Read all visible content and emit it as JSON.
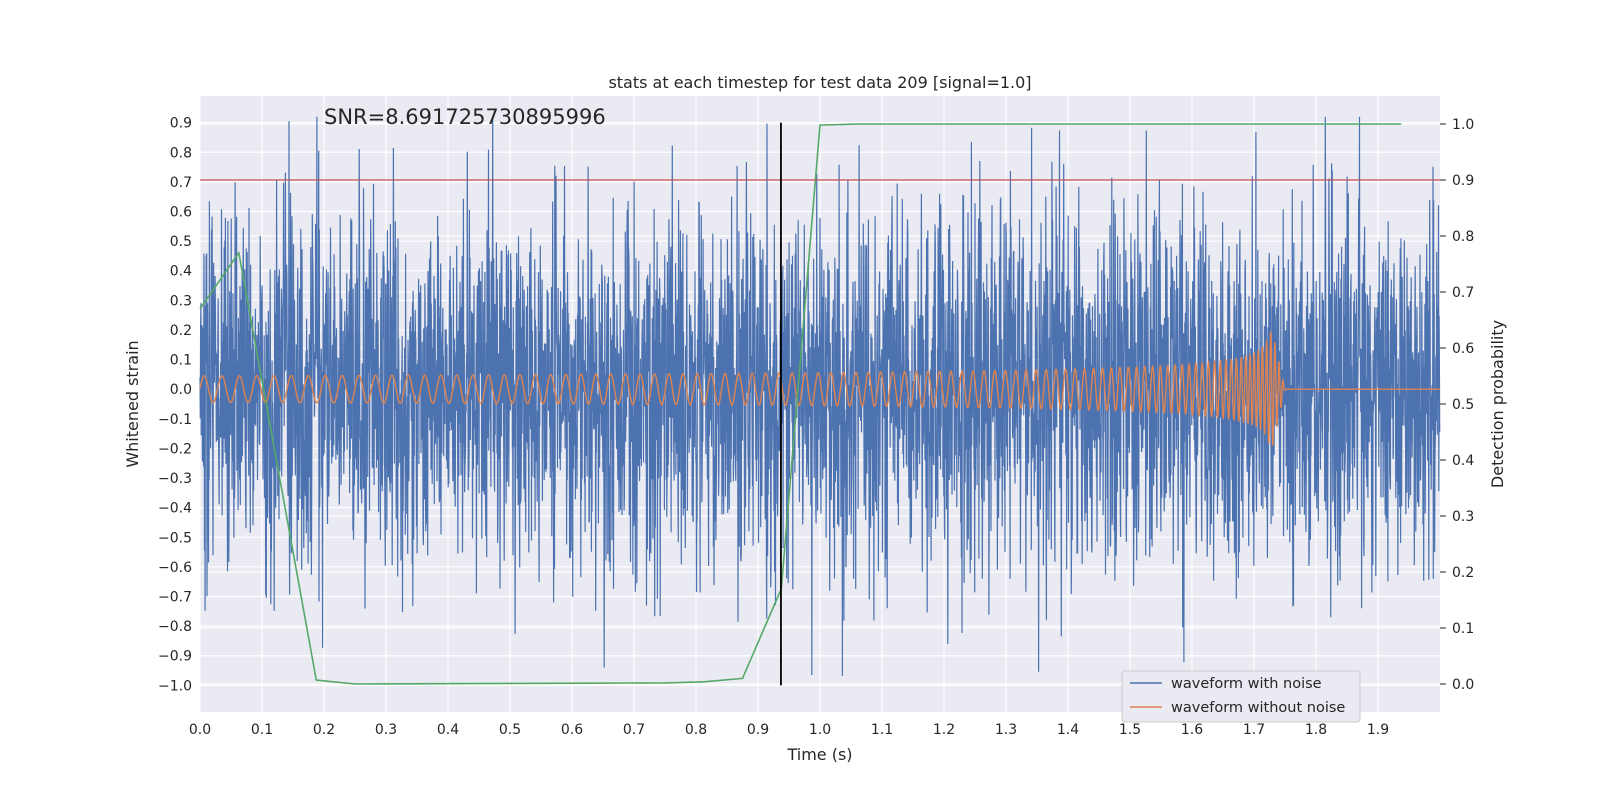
{
  "chart_data": {
    "type": "line",
    "title": "stats at each timestep for test data 209 [signal=1.0]",
    "xlabel": "Time (s)",
    "ylabel": "Whitened strain",
    "y2label": "Detection probability",
    "xlim": [
      0.0,
      2.0
    ],
    "ylim": [
      -1.09,
      0.99
    ],
    "y2lim": [
      -0.05,
      1.05
    ],
    "grid": true,
    "x_ticks": [
      0.0,
      0.1,
      0.2,
      0.3,
      0.4,
      0.5,
      0.6,
      0.7,
      0.8,
      0.9,
      1.0,
      1.1,
      1.2,
      1.3,
      1.4,
      1.5,
      1.6,
      1.7,
      1.8,
      1.9
    ],
    "x_tick_labels": [
      "0.0",
      "0.1",
      "0.2",
      "0.3",
      "0.4",
      "0.5",
      "0.6",
      "0.7",
      "0.8",
      "0.9",
      "1.0",
      "1.1",
      "1.2",
      "1.3",
      "1.4",
      "1.5",
      "1.6",
      "1.7",
      "1.8",
      "1.9"
    ],
    "y_ticks": [
      -1.0,
      -0.9,
      -0.8,
      -0.7,
      -0.6,
      -0.5,
      -0.4,
      -0.3,
      -0.2,
      -0.1,
      0.0,
      0.1,
      0.2,
      0.3,
      0.4,
      0.5,
      0.6,
      0.7,
      0.8,
      0.9
    ],
    "y_tick_labels": [
      "−1.0",
      "−0.9",
      "−0.8",
      "−0.7",
      "−0.6",
      "−0.5",
      "−0.4",
      "−0.3",
      "−0.2",
      "−0.1",
      "0.0",
      "0.1",
      "0.2",
      "0.3",
      "0.4",
      "0.5",
      "0.6",
      "0.7",
      "0.8",
      "0.9"
    ],
    "y2_ticks": [
      0.0,
      0.1,
      0.2,
      0.3,
      0.4,
      0.5,
      0.6,
      0.7,
      0.8,
      0.9,
      1.0
    ],
    "y2_tick_labels": [
      "0.0",
      "0.1",
      "0.2",
      "0.3",
      "0.4",
      "0.5",
      "0.6",
      "0.7",
      "0.8",
      "0.9",
      "1.0"
    ],
    "annotation": "SNR=8.691725730895996",
    "annotation_anchor": {
      "x": 0.2,
      "y": 0.89
    },
    "threshold": {
      "axis": "y2",
      "value": 0.9,
      "color": "#c44e52"
    },
    "marker_line": {
      "x": 0.937,
      "y_from": -1.0,
      "y_to": 0.9,
      "color": "#000000"
    },
    "series": [
      {
        "name": "waveform with noise",
        "color": "#4c72b0",
        "axis": "y",
        "description": "noisy whitened strain sampled at ~2048 Hz, amplitude sigma ~0.3, peaks near +0.88 and -1.0",
        "points_per_second": 2048,
        "sigma": 0.3
      },
      {
        "name": "waveform without noise",
        "color": "#dd8452",
        "axis": "y",
        "description": "chirp: amplitude 0.045 rising to ~0.25 at merger t=1.73 s, frequency 35 Hz rising to ~150 Hz, flat zero after 1.75 s",
        "chirp": {
          "t_merge": 1.73,
          "a0": 0.045,
          "a_peak": 0.25,
          "f0": 35,
          "f_peak": 150,
          "t_end": 1.75
        }
      },
      {
        "name": "detection probability",
        "color": "#55a868",
        "axis": "y2",
        "x": [
          0.0,
          0.0625,
          0.1875,
          0.25,
          0.375,
          0.5,
          0.625,
          0.75,
          0.8125,
          0.875,
          0.9375,
          1.0,
          1.0625,
          1.125,
          1.25,
          1.5,
          1.75,
          1.9375
        ],
        "values": [
          0.67,
          0.77,
          0.007,
          0.0,
          0.0005,
          0.001,
          0.0015,
          0.002,
          0.004,
          0.01,
          0.17,
          0.998,
          1.0,
          1.0,
          1.0,
          1.0,
          1.0,
          1.0
        ]
      }
    ],
    "legend": {
      "position": "lower right",
      "entries": [
        {
          "label": "waveform with noise",
          "color": "#4c72b0"
        },
        {
          "label": "waveform without noise",
          "color": "#dd8452"
        }
      ]
    }
  }
}
